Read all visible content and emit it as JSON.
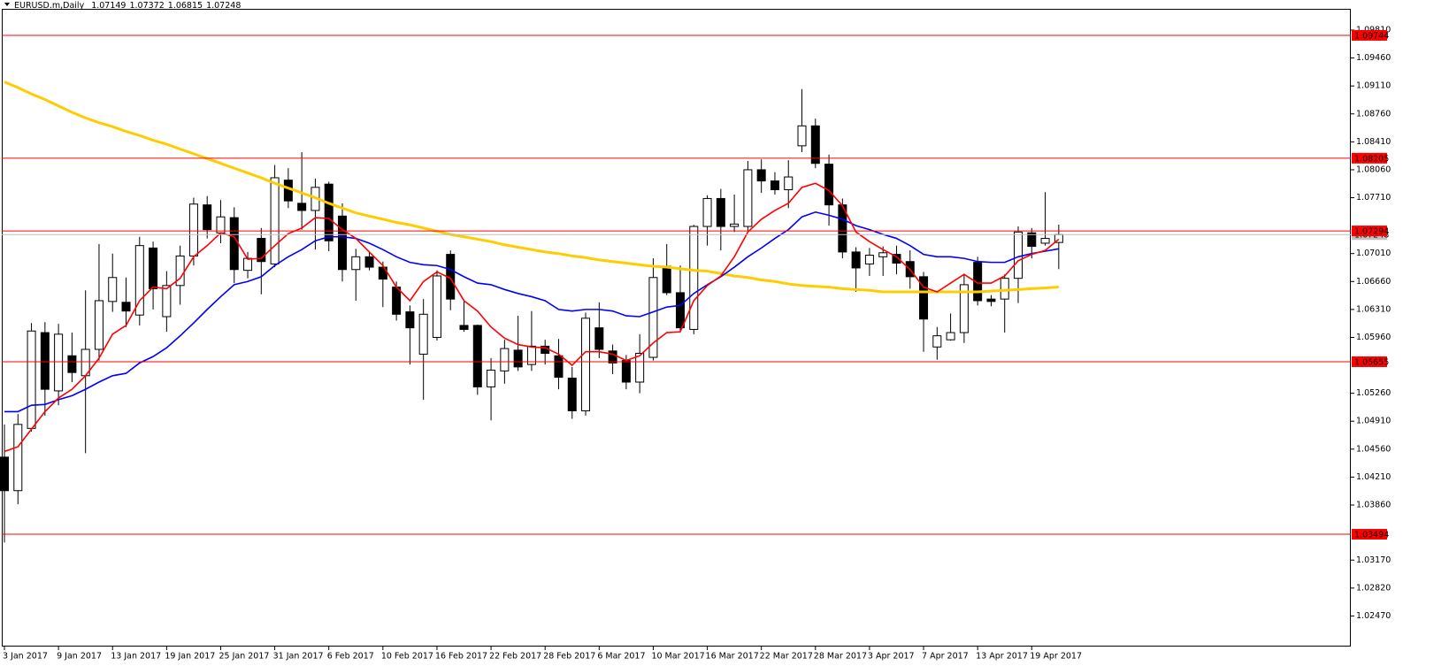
{
  "chart_data": {
    "type": "candlestick",
    "title": "EURUSD.m,Daily",
    "categories": [
      "3 Jan 2017",
      null,
      null,
      null,
      "9 Jan 2017",
      null,
      null,
      null,
      "13 Jan 2017",
      null,
      null,
      null,
      "19 Jan 2017",
      null,
      null,
      null,
      "25 Jan 2017",
      null,
      null,
      null,
      "31 Jan 2017",
      null,
      null,
      null,
      "6 Feb 2017",
      null,
      null,
      null,
      "10 Feb 2017",
      null,
      null,
      null,
      "16 Feb 2017",
      null,
      null,
      null,
      "22 Feb 2017",
      null,
      null,
      null,
      "28 Feb 2017",
      null,
      null,
      null,
      "6 Mar 2017",
      null,
      null,
      null,
      "10 Mar 2017",
      null,
      null,
      null,
      "16 Mar 2017",
      null,
      null,
      null,
      "22 Mar 2017",
      null,
      null,
      null,
      "28 Mar 2017",
      null,
      null,
      null,
      "3 Apr 2017",
      null,
      null,
      null,
      "7 Apr 2017",
      null,
      null,
      null,
      "13 Apr 2017",
      null,
      null,
      null,
      "19 Apr 2017",
      null,
      null
    ],
    "open": [
      1.0446,
      1.0404,
      1.0482,
      1.0602,
      1.0529,
      1.0573,
      1.0548,
      1.0581,
      1.0641,
      1.064,
      1.0624,
      1.0708,
      1.0622,
      1.0661,
      1.0698,
      1.0762,
      1.0727,
      1.0746,
      1.068,
      1.072,
      1.0688,
      1.0793,
      1.0764,
      1.0755,
      1.0788,
      1.0748,
      1.0681,
      1.0697,
      1.0684,
      1.0659,
      1.0628,
      1.0575,
      1.0596,
      1.07,
      1.0611,
      1.0611,
      1.0534,
      1.0554,
      1.058,
      1.0562,
      1.0585,
      1.0573,
      1.0545,
      1.0504,
      1.0608,
      1.0579,
      1.0567,
      1.054,
      1.0571,
      1.0685,
      1.0652,
      1.0606,
      1.0735,
      1.077,
      1.0735,
      1.0735,
      1.0806,
      1.0792,
      1.0781,
      1.0836,
      1.0861,
      1.0813,
      1.0762,
      1.0703,
      1.0688,
      1.0697,
      1.07,
      1.0691,
      1.0672,
      1.0584,
      1.0593,
      1.0602,
      1.069,
      1.0644,
      1.0644,
      1.067,
      1.0727,
      1.0714,
      1.07149
    ],
    "high": [
      1.0487,
      1.05,
      1.0614,
      1.0615,
      1.0613,
      1.0602,
      1.0655,
      1.0713,
      1.0701,
      1.0671,
      1.0722,
      1.0716,
      1.0679,
      1.0711,
      1.0771,
      1.0773,
      1.0768,
      1.0759,
      1.0703,
      1.0733,
      1.0812,
      1.0808,
      1.0828,
      1.0795,
      1.0791,
      1.0764,
      1.0707,
      1.0703,
      1.0691,
      1.0666,
      1.0636,
      1.0644,
      1.068,
      1.0705,
      1.0641,
      1.0612,
      1.057,
      1.0593,
      1.0623,
      1.0629,
      1.0593,
      1.0594,
      1.0559,
      1.0627,
      1.064,
      1.0587,
      1.0574,
      1.06,
      1.0695,
      1.0713,
      1.0686,
      1.0737,
      1.0774,
      1.0782,
      1.0775,
      1.0817,
      1.0819,
      1.0803,
      1.0818,
      1.0907,
      1.087,
      1.0825,
      1.077,
      1.0709,
      1.0708,
      1.071,
      1.0711,
      1.0705,
      1.0678,
      1.0609,
      1.0626,
      1.0675,
      1.0697,
      1.0649,
      1.0675,
      1.0735,
      1.0733,
      1.0778,
      1.07372
    ],
    "low": [
      1.0339,
      1.0387,
      1.0478,
      1.0498,
      1.0511,
      1.054,
      1.0451,
      1.0567,
      1.0628,
      1.0609,
      1.0611,
      1.0631,
      1.0603,
      1.0637,
      1.0686,
      1.072,
      1.0714,
      1.0664,
      1.067,
      1.065,
      1.0684,
      1.0758,
      1.0731,
      1.0706,
      1.0704,
      1.0666,
      1.0642,
      1.068,
      1.0634,
      1.0617,
      1.0562,
      1.0518,
      1.0592,
      1.063,
      1.0603,
      1.0524,
      1.0492,
      1.0538,
      1.0554,
      1.0554,
      1.0562,
      1.0531,
      1.0494,
      1.0498,
      1.057,
      1.055,
      1.0531,
      1.0526,
      1.0567,
      1.0649,
      1.0603,
      1.06,
      1.0711,
      1.0705,
      1.0728,
      1.0728,
      1.0777,
      1.0775,
      1.0758,
      1.0828,
      1.0808,
      1.0736,
      1.0695,
      1.0653,
      1.0673,
      1.0673,
      1.0675,
      1.0657,
      1.0578,
      1.0568,
      1.0592,
      1.0589,
      1.0636,
      1.0635,
      1.0602,
      1.0639,
      1.0695,
      1.0711,
      1.06815
    ],
    "close": [
      1.0404,
      1.0487,
      1.0604,
      1.0531,
      1.06,
      1.0552,
      1.0581,
      1.0642,
      1.0671,
      1.0629,
      1.0711,
      1.0657,
      1.0661,
      1.0698,
      1.0763,
      1.0731,
      1.0747,
      1.0681,
      1.0695,
      1.0691,
      1.0796,
      1.0767,
      1.0755,
      1.0784,
      1.0717,
      1.0681,
      1.0697,
      1.0684,
      1.0669,
      1.0625,
      1.0608,
      1.0625,
      1.0673,
      1.0644,
      1.0606,
      1.0534,
      1.0555,
      1.0582,
      1.0559,
      1.0585,
      1.0576,
      1.0546,
      1.0504,
      1.062,
      1.0581,
      1.0564,
      1.054,
      1.0576,
      1.0671,
      1.0652,
      1.0608,
      1.0735,
      1.077,
      1.0735,
      1.0738,
      1.0806,
      1.0792,
      1.0781,
      1.0797,
      1.0861,
      1.0814,
      1.0762,
      1.0703,
      1.0683,
      1.0699,
      1.0702,
      1.0689,
      1.0672,
      1.0619,
      1.0598,
      1.0602,
      1.0662,
      1.0642,
      1.0641,
      1.067,
      1.0728,
      1.071,
      1.072,
      1.07248
    ],
    "up_color": "#ffffff",
    "down_color": "#000000",
    "series": [
      {
        "color": "#ffcc00",
        "values": [
          1.0916,
          1.0909,
          1.0901,
          1.0894,
          1.0886,
          1.0878,
          1.0871,
          1.0865,
          1.086,
          1.0854,
          1.0849,
          1.0843,
          1.0838,
          1.0832,
          1.0826,
          1.082,
          1.0814,
          1.0808,
          1.0802,
          1.0796,
          1.0789,
          1.0783,
          1.0777,
          1.0771,
          1.0764,
          1.0758,
          1.0752,
          1.0748,
          1.0744,
          1.074,
          1.0737,
          1.0733,
          1.0729,
          1.0725,
          1.0722,
          1.0719,
          1.0716,
          1.0712,
          1.0709,
          1.0706,
          1.0703,
          1.0701,
          1.0698,
          1.0696,
          1.0693,
          1.0691,
          1.0689,
          1.0687,
          1.0685,
          1.0684,
          1.0682,
          1.068,
          1.0679,
          1.0676,
          1.0673,
          1.0671,
          1.0668,
          1.0666,
          1.0663,
          1.0661,
          1.066,
          1.0659,
          1.0657,
          1.0656,
          1.0655,
          1.0653,
          1.0653,
          1.0653,
          1.0653,
          1.0653,
          1.0653,
          1.0653,
          1.0653,
          1.0654,
          1.0655,
          1.0656,
          1.0657,
          1.0658,
          1.0659
        ]
      },
      {
        "color": "#0000ff",
        "values": [
          1.0503,
          1.0503,
          1.0511,
          1.0512,
          1.0518,
          1.0523,
          1.0531,
          1.054,
          1.0548,
          1.0551,
          1.0564,
          1.0572,
          1.0583,
          1.0598,
          1.0614,
          1.0631,
          1.0647,
          1.0662,
          1.0666,
          1.0672,
          1.0686,
          1.0697,
          1.0706,
          1.0717,
          1.0722,
          1.0722,
          1.072,
          1.0714,
          1.0706,
          1.0697,
          1.069,
          1.0687,
          1.0686,
          1.0681,
          1.0672,
          1.0664,
          1.0662,
          1.0656,
          1.0651,
          1.0647,
          1.0642,
          1.0631,
          1.0629,
          1.0631,
          1.0631,
          1.0629,
          1.0623,
          1.0622,
          1.0628,
          1.0634,
          1.0636,
          1.0651,
          1.0662,
          1.0672,
          1.0684,
          1.0697,
          1.0708,
          1.072,
          1.0731,
          1.0747,
          1.0753,
          1.0749,
          1.0744,
          1.0736,
          1.0731,
          1.0725,
          1.072,
          1.0711,
          1.07,
          1.0697,
          1.0697,
          1.0695,
          1.0691,
          1.069,
          1.069,
          1.0697,
          1.0701,
          1.0704,
          1.0707
        ]
      },
      {
        "color": "#ff0000",
        "values": [
          1.0453,
          1.0459,
          1.0481,
          1.0503,
          1.052,
          1.0531,
          1.0548,
          1.057,
          1.06,
          1.0611,
          1.0642,
          1.0659,
          1.0657,
          1.067,
          1.0697,
          1.0711,
          1.0727,
          1.0722,
          1.0694,
          1.0695,
          1.0711,
          1.0726,
          1.0733,
          1.0746,
          1.0745,
          1.0731,
          1.072,
          1.0703,
          1.0686,
          1.0659,
          1.0642,
          1.0666,
          1.0678,
          1.067,
          1.0642,
          1.0629,
          1.0609,
          1.0595,
          1.0587,
          1.0584,
          1.0583,
          1.0575,
          1.0561,
          1.0578,
          1.0578,
          1.0575,
          1.0567,
          1.0573,
          1.0589,
          1.0602,
          1.0603,
          1.0642,
          1.0661,
          1.0673,
          1.0697,
          1.0728,
          1.0744,
          1.0755,
          1.0764,
          1.0784,
          1.0789,
          1.078,
          1.0761,
          1.0728,
          1.0716,
          1.0706,
          1.0697,
          1.0681,
          1.0659,
          1.0653,
          1.0664,
          1.0675,
          1.0664,
          1.0664,
          1.0673,
          1.0692,
          1.07,
          1.0705,
          1.0719
        ]
      }
    ],
    "levels": [
      1.09744,
      1.08205,
      1.07294,
      1.05655,
      1.03494
    ],
    "level_color": "#ff0000",
    "last_price_color": "#c0c0c0",
    "ylim": [
      1.02087,
      1.10076
    ],
    "yticks": [
      {
        "value": 1.0247,
        "label": "1.02470"
      },
      {
        "value": 1.0282,
        "label": "1.02820"
      },
      {
        "value": 1.0317,
        "label": "1.03170"
      },
      {
        "value": 1.0386,
        "label": "1.03860"
      },
      {
        "value": 1.0421,
        "label": "1.04210"
      },
      {
        "value": 1.0456,
        "label": "1.04560"
      },
      {
        "value": 1.0491,
        "label": "1.04910"
      },
      {
        "value": 1.0526,
        "label": "1.05260"
      },
      {
        "value": 1.0596,
        "label": "1.05960"
      },
      {
        "value": 1.0631,
        "label": "1.06310"
      },
      {
        "value": 1.0666,
        "label": "1.06660"
      },
      {
        "value": 1.0701,
        "label": "1.07010"
      },
      {
        "value": 1.0771,
        "label": "1.07710"
      },
      {
        "value": 1.0806,
        "label": "1.08060"
      },
      {
        "value": 1.0841,
        "label": "1.08410"
      },
      {
        "value": 1.0876,
        "label": "1.08760"
      },
      {
        "value": 1.0911,
        "label": "1.09110"
      },
      {
        "value": 1.0946,
        "label": "1.09460"
      },
      {
        "value": 1.0981,
        "label": "1.09810"
      }
    ],
    "grid": false
  }
}
